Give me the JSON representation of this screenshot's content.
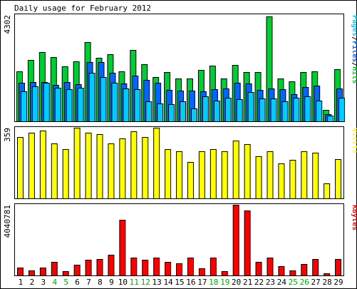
{
  "title": "Daily usage for February 2012",
  "colors": {
    "background": "#ffffff",
    "panel": "#ffffff",
    "frame": "#000000",
    "hits": "#00cc33",
    "files": "#0066ff",
    "pages": "#00ccff",
    "visits": "#ffff00",
    "kbytes": "#ff0000",
    "weekday_label": "#000000",
    "weekend_label": "#00aa00"
  },
  "chart_data": [
    {
      "type": "bar",
      "name": "hits-files-pages",
      "max_label": "4302",
      "legend": [
        {
          "text": "Pages",
          "color_key": "pages"
        },
        {
          "text": "/",
          "color_key": "weekday_label"
        },
        {
          "text": "Files",
          "color_key": "files"
        },
        {
          "text": "/",
          "color_key": "weekday_label"
        },
        {
          "text": "Hits",
          "color_key": "hits"
        }
      ],
      "ylim": [
        0,
        4302
      ],
      "categories": [
        "1",
        "2",
        "3",
        "4",
        "5",
        "6",
        "7",
        "8",
        "9",
        "10",
        "11",
        "12",
        "13",
        "14",
        "15",
        "16",
        "17",
        "18",
        "19",
        "20",
        "21",
        "22",
        "23",
        "24",
        "25",
        "26",
        "27",
        "28",
        "29"
      ],
      "series": [
        {
          "name": "Hits",
          "color_key": "hits",
          "values": [
            2030,
            2480,
            2790,
            2590,
            2210,
            2420,
            3200,
            2580,
            2710,
            2030,
            2900,
            2300,
            1800,
            1980,
            1720,
            1740,
            2070,
            2240,
            1730,
            2270,
            1990,
            1980,
            4230,
            1720,
            1620,
            1990,
            2030,
            450,
            2100
          ]
        },
        {
          "name": "Files",
          "color_key": "files",
          "values": [
            1560,
            1590,
            1590,
            1470,
            1600,
            1510,
            2400,
            2400,
            1960,
            1540,
            1850,
            1680,
            1570,
            1270,
            1240,
            1230,
            1210,
            1310,
            1320,
            1550,
            1530,
            1280,
            1330,
            1290,
            1100,
            1380,
            1450,
            300,
            1320
          ]
        },
        {
          "name": "Pages",
          "color_key": "pages",
          "values": [
            1220,
            1420,
            1560,
            1350,
            1300,
            1370,
            1950,
            1780,
            1550,
            1330,
            1290,
            800,
            730,
            690,
            800,
            530,
            1010,
            830,
            950,
            900,
            1180,
            910,
            920,
            820,
            940,
            1020,
            840,
            230,
            950
          ]
        }
      ]
    },
    {
      "type": "bar",
      "name": "visits",
      "max_label": "359",
      "legend": [
        {
          "text": "Visits",
          "color_key": "visits"
        }
      ],
      "ylim": [
        0,
        359
      ],
      "categories": [
        "1",
        "2",
        "3",
        "4",
        "5",
        "6",
        "7",
        "8",
        "9",
        "10",
        "11",
        "12",
        "13",
        "14",
        "15",
        "16",
        "17",
        "18",
        "19",
        "20",
        "21",
        "22",
        "23",
        "24",
        "25",
        "26",
        "27",
        "28",
        "29"
      ],
      "series": [
        {
          "name": "Visits",
          "color_key": "visits",
          "values": [
            311,
            333,
            345,
            278,
            249,
            359,
            332,
            327,
            279,
            306,
            340,
            312,
            359,
            250,
            238,
            186,
            238,
            250,
            238,
            293,
            274,
            213,
            240,
            177,
            196,
            240,
            231,
            76,
            200
          ]
        }
      ]
    },
    {
      "type": "bar",
      "name": "kbytes",
      "max_label": "4040781",
      "legend": [
        {
          "text": "KBytes",
          "color_key": "kbytes"
        }
      ],
      "ylim": [
        0,
        4040781
      ],
      "categories": [
        "1",
        "2",
        "3",
        "4",
        "5",
        "6",
        "7",
        "8",
        "9",
        "10",
        "11",
        "12",
        "13",
        "14",
        "15",
        "16",
        "17",
        "18",
        "19",
        "20",
        "21",
        "22",
        "23",
        "24",
        "25",
        "26",
        "27",
        "28",
        "29"
      ],
      "weekend_days": [
        4,
        5,
        11,
        12,
        18,
        19,
        25,
        26
      ],
      "series": [
        {
          "name": "KBytes",
          "color_key": "kbytes",
          "values": [
            430000,
            300000,
            450000,
            760000,
            260000,
            620000,
            900000,
            950000,
            1200000,
            3200000,
            1000000,
            900000,
            1040000,
            770000,
            710000,
            1000000,
            400000,
            1000000,
            230000,
            4040781,
            3700000,
            760000,
            1000000,
            540000,
            270000,
            640000,
            950000,
            120000,
            950000
          ]
        }
      ]
    }
  ]
}
